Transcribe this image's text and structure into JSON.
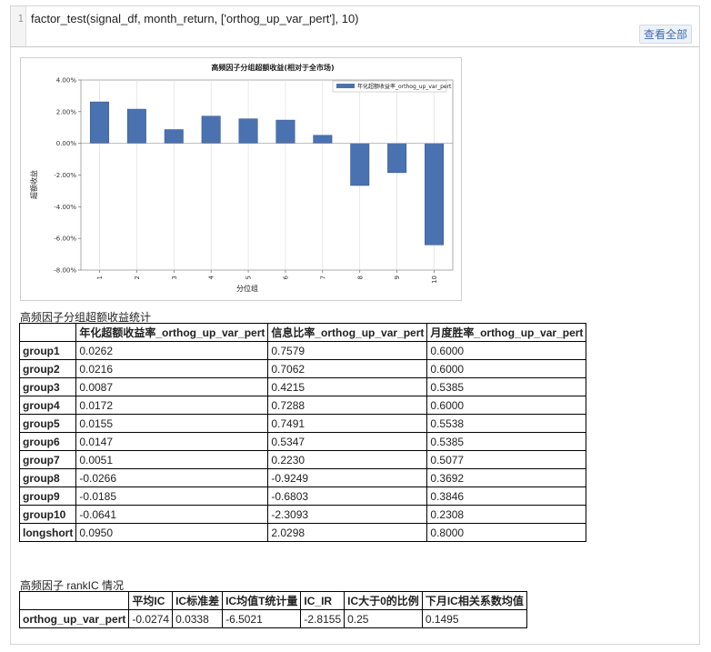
{
  "code_cell": {
    "line_number": "1",
    "code": "factor_test(signal_df, month_return, ['orthog_up_var_pert'], 10)",
    "view_all_label": "查看全部"
  },
  "chart_data": {
    "type": "bar",
    "title": "高频因子分组超额收益(相对于全市场)",
    "xlabel": "分位组",
    "ylabel": "超额收益",
    "categories": [
      "1",
      "2",
      "3",
      "4",
      "5",
      "6",
      "7",
      "8",
      "9",
      "10"
    ],
    "series": [
      {
        "name": "年化超额收益率_orthog_up_var_pert",
        "values": [
          0.0262,
          0.0216,
          0.0087,
          0.0172,
          0.0155,
          0.0147,
          0.0051,
          -0.0266,
          -0.0185,
          -0.0641
        ]
      }
    ],
    "ylim": [
      -0.08,
      0.04
    ],
    "yticks": [
      0.04,
      0.02,
      0.0,
      -0.02,
      -0.04,
      -0.06,
      -0.08
    ],
    "ytick_labels": [
      "4.00%",
      "2.00%",
      "0.00%",
      "-2.00%",
      "-4.00%",
      "-6.00%",
      "-8.00%"
    ],
    "grid": true,
    "legend_position": "top-right",
    "bar_color": "#4a72b0"
  },
  "table1": {
    "caption": "高频因子分组超额收益统计",
    "columns": [
      "",
      "年化超额收益率_orthog_up_var_pert",
      "信息比率_orthog_up_var_pert",
      "月度胜率_orthog_up_var_pert"
    ],
    "rows": [
      [
        "group1",
        "0.0262",
        "0.7579",
        "0.6000"
      ],
      [
        "group2",
        "0.0216",
        "0.7062",
        "0.6000"
      ],
      [
        "group3",
        "0.0087",
        "0.4215",
        "0.5385"
      ],
      [
        "group4",
        "0.0172",
        "0.7288",
        "0.6000"
      ],
      [
        "group5",
        "0.0155",
        "0.7491",
        "0.5538"
      ],
      [
        "group6",
        "0.0147",
        "0.5347",
        "0.5385"
      ],
      [
        "group7",
        "0.0051",
        "0.2230",
        "0.5077"
      ],
      [
        "group8",
        "-0.0266",
        "-0.9249",
        "0.3692"
      ],
      [
        "group9",
        "-0.0185",
        "-0.6803",
        "0.3846"
      ],
      [
        "group10",
        "-0.0641",
        "-2.3093",
        "0.2308"
      ],
      [
        "longshort",
        "0.0950",
        "2.0298",
        "0.8000"
      ]
    ]
  },
  "table2": {
    "caption": "高频因子 rankIC 情况",
    "columns": [
      "",
      "平均IC",
      "IC标准差",
      "IC均值T统计量",
      "IC_IR",
      "IC大于0的比例",
      "下月IC相关系数均值"
    ],
    "rows": [
      [
        "orthog_up_var_pert",
        "-0.0274",
        "0.0338",
        "-6.5021",
        "-2.8155",
        "0.25",
        "0.1495"
      ]
    ]
  }
}
